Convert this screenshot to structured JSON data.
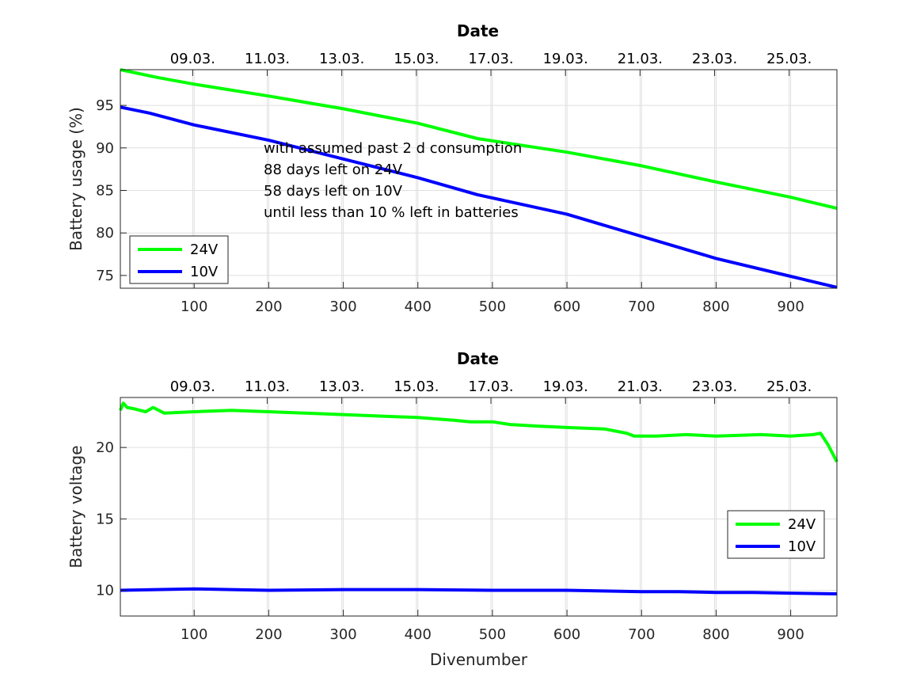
{
  "colors": {
    "series_24v": "#00ff00",
    "series_10v": "#0000ff"
  },
  "chart_data": [
    {
      "type": "line",
      "title": "Date",
      "xlabel": "",
      "ylabel": "Battery usage (%)",
      "xlim": [
        1,
        962
      ],
      "ylim": [
        73.5,
        99.2
      ],
      "xticks": [
        100,
        200,
        300,
        400,
        500,
        600,
        700,
        800,
        900
      ],
      "yticks": [
        75,
        80,
        85,
        90,
        95
      ],
      "date_tick_labels": [
        "09.03.",
        "11.03.",
        "13.03.",
        "15.03.",
        "17.03.",
        "19.03.",
        "21.03.",
        "23.03.",
        "25.03."
      ],
      "date_tick_x": [
        98,
        198,
        298,
        398,
        498,
        598,
        698,
        798,
        898
      ],
      "grid": true,
      "legend_position": "bottom-left",
      "series": [
        {
          "name": "24V",
          "x": [
            1,
            50,
            100,
            200,
            300,
            400,
            480,
            600,
            700,
            800,
            900,
            962
          ],
          "values": [
            99.2,
            98.3,
            97.5,
            96.1,
            94.6,
            92.9,
            91.1,
            89.5,
            87.9,
            86.0,
            84.2,
            82.9
          ]
        },
        {
          "name": "10V",
          "x": [
            1,
            40,
            100,
            200,
            300,
            400,
            480,
            600,
            700,
            800,
            900,
            962
          ],
          "values": [
            94.8,
            94.1,
            92.7,
            90.9,
            88.7,
            86.5,
            84.5,
            82.2,
            79.6,
            77.0,
            74.9,
            73.6
          ]
        }
      ],
      "annotation": [
        "with assumed past 2 d consumption",
        "88 days left on 24V",
        "58 days left on 10V",
        "until less than 10 % left in batteries"
      ]
    },
    {
      "type": "line",
      "title": "Date",
      "xlabel": "Divenumber",
      "ylabel": "Battery voltage",
      "xlim": [
        1,
        962
      ],
      "ylim": [
        8.2,
        23.5
      ],
      "xticks": [
        100,
        200,
        300,
        400,
        500,
        600,
        700,
        800,
        900
      ],
      "yticks": [
        10,
        15,
        20
      ],
      "date_tick_labels": [
        "09.03.",
        "11.03.",
        "13.03.",
        "15.03.",
        "17.03.",
        "19.03.",
        "21.03.",
        "23.03.",
        "25.03."
      ],
      "date_tick_x": [
        98,
        198,
        298,
        398,
        498,
        598,
        698,
        798,
        898
      ],
      "grid": true,
      "legend_position": "right",
      "series": [
        {
          "name": "24V",
          "x": [
            1,
            5,
            10,
            20,
            35,
            45,
            60,
            100,
            150,
            200,
            250,
            300,
            350,
            400,
            450,
            470,
            500,
            525,
            526,
            560,
            600,
            650,
            680,
            690,
            720,
            760,
            800,
            860,
            900,
            930,
            940,
            950,
            962
          ],
          "values": [
            22.6,
            23.1,
            22.8,
            22.7,
            22.5,
            22.8,
            22.4,
            22.5,
            22.6,
            22.5,
            22.4,
            22.3,
            22.2,
            22.1,
            21.9,
            21.8,
            21.8,
            21.6,
            21.6,
            21.5,
            21.4,
            21.3,
            21.0,
            20.8,
            20.8,
            20.9,
            20.8,
            20.9,
            20.8,
            20.9,
            21.0,
            20.2,
            19.0
          ]
        },
        {
          "name": "10V",
          "x": [
            1,
            50,
            100,
            150,
            200,
            300,
            400,
            500,
            600,
            650,
            700,
            750,
            800,
            850,
            900,
            962
          ],
          "values": [
            10.0,
            10.05,
            10.1,
            10.05,
            10.0,
            10.05,
            10.05,
            10.0,
            10.0,
            9.95,
            9.9,
            9.9,
            9.85,
            9.85,
            9.8,
            9.75
          ]
        }
      ]
    }
  ]
}
